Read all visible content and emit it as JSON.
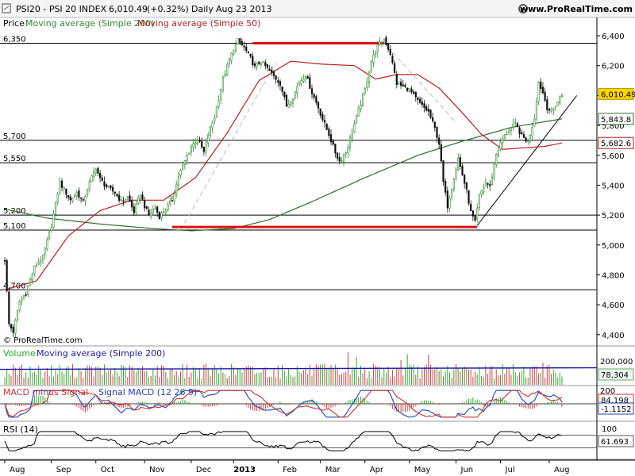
{
  "header": {
    "title": "PSI20 - PSI 20 INDEX",
    "price": "6,010.49",
    "change": "(+0.32%)",
    "period": "Daily",
    "date": "Aug 23 2013",
    "site": "www.ProRealTime.com"
  },
  "legend": {
    "price": "Price",
    "ma200": "Moving average (Simple 200)",
    "ma50": "Moving average (Simple 50)"
  },
  "copyright": "© ProRealTime.com",
  "colors": {
    "bull": "#2e8b2e",
    "bear": "#111111",
    "ma200": "#2e6b2e",
    "ma50": "#b22222",
    "support": "#dd1111",
    "volume_up": "#33aa33",
    "volume_down": "#cc4444",
    "volume_ma": "#1a1aaa",
    "macd_line": "#2244aa",
    "signal_line": "#cc3333",
    "rsi": "#000000",
    "price_badge": "#ffd400"
  },
  "chart_data": {
    "type": "candlestick",
    "price_range": [
      4330,
      6480
    ],
    "y_ticks": [
      4400,
      4600,
      4800,
      5000,
      5200,
      5400,
      5600,
      5800,
      6000,
      6200,
      6400
    ],
    "y_tick_labels": [
      "4,400",
      "4,600",
      "4,800",
      "5,000",
      "5,200",
      "5,400",
      "5,600",
      "5,800",
      "6,000",
      "6,200",
      "6,400"
    ],
    "x_labels": [
      "Aug",
      "Sep",
      "Oct",
      "Nov",
      "Dec",
      "2013",
      "Feb",
      "Mar",
      "Apr",
      "May",
      "Jun",
      "Jul",
      "Aug"
    ],
    "x_label_days": [
      0,
      22,
      43,
      66,
      88,
      108,
      129,
      149,
      170,
      191,
      213,
      234,
      257
    ],
    "total_days": 278,
    "horizontal_levels": [
      {
        "value": 6350,
        "label": "6,350"
      },
      {
        "value": 5700,
        "label": "5,700"
      },
      {
        "value": 5550,
        "label": "5,550"
      },
      {
        "value": 5200,
        "label": "5,200"
      },
      {
        "value": 5100,
        "label": "5,100"
      },
      {
        "value": 4700,
        "label": "4,700"
      }
    ],
    "price_path": [
      [
        0,
        4900
      ],
      [
        2,
        4470
      ],
      [
        4,
        4420
      ],
      [
        7,
        4620
      ],
      [
        10,
        4680
      ],
      [
        14,
        4850
      ],
      [
        18,
        4920
      ],
      [
        22,
        5130
      ],
      [
        26,
        5420
      ],
      [
        28,
        5370
      ],
      [
        31,
        5300
      ],
      [
        34,
        5350
      ],
      [
        37,
        5290
      ],
      [
        40,
        5420
      ],
      [
        43,
        5520
      ],
      [
        45,
        5440
      ],
      [
        48,
        5390
      ],
      [
        52,
        5350
      ],
      [
        55,
        5290
      ],
      [
        58,
        5320
      ],
      [
        61,
        5220
      ],
      [
        64,
        5340
      ],
      [
        66,
        5260
      ],
      [
        68,
        5200
      ],
      [
        71,
        5250
      ],
      [
        73,
        5190
      ],
      [
        76,
        5240
      ],
      [
        79,
        5300
      ],
      [
        82,
        5460
      ],
      [
        85,
        5560
      ],
      [
        88,
        5660
      ],
      [
        91,
        5710
      ],
      [
        94,
        5620
      ],
      [
        96,
        5740
      ],
      [
        99,
        5860
      ],
      [
        101,
        5980
      ],
      [
        103,
        6110
      ],
      [
        106,
        6240
      ],
      [
        108,
        6310
      ],
      [
        110,
        6370
      ],
      [
        113,
        6320
      ],
      [
        116,
        6250
      ],
      [
        118,
        6190
      ],
      [
        121,
        6230
      ],
      [
        124,
        6180
      ],
      [
        127,
        6130
      ],
      [
        130,
        6080
      ],
      [
        133,
        5930
      ],
      [
        136,
        5990
      ],
      [
        139,
        6090
      ],
      [
        142,
        6140
      ],
      [
        145,
        6020
      ],
      [
        148,
        5920
      ],
      [
        150,
        5840
      ],
      [
        153,
        5740
      ],
      [
        156,
        5620
      ],
      [
        158,
        5560
      ],
      [
        161,
        5620
      ],
      [
        164,
        5760
      ],
      [
        167,
        5900
      ],
      [
        170,
        6040
      ],
      [
        173,
        6230
      ],
      [
        176,
        6330
      ],
      [
        179,
        6380
      ],
      [
        182,
        6280
      ],
      [
        185,
        6080
      ],
      [
        188,
        6060
      ],
      [
        191,
        6040
      ],
      [
        194,
        5980
      ],
      [
        197,
        5930
      ],
      [
        200,
        5890
      ],
      [
        203,
        5780
      ],
      [
        205,
        5680
      ],
      [
        207,
        5420
      ],
      [
        209,
        5260
      ],
      [
        212,
        5450
      ],
      [
        214,
        5580
      ],
      [
        216,
        5470
      ],
      [
        218,
        5360
      ],
      [
        220,
        5220
      ],
      [
        222,
        5150
      ],
      [
        224,
        5330
      ],
      [
        227,
        5420
      ],
      [
        229,
        5390
      ],
      [
        232,
        5610
      ],
      [
        235,
        5710
      ],
      [
        238,
        5770
      ],
      [
        241,
        5810
      ],
      [
        244,
        5730
      ],
      [
        247,
        5690
      ],
      [
        250,
        5850
      ],
      [
        252,
        6090
      ],
      [
        254,
        6020
      ],
      [
        256,
        5920
      ],
      [
        258,
        5890
      ],
      [
        261,
        5960
      ],
      [
        263,
        6010
      ]
    ],
    "ma200_path": [
      [
        0,
        5240
      ],
      [
        20,
        5180
      ],
      [
        45,
        5140
      ],
      [
        70,
        5110
      ],
      [
        88,
        5095
      ],
      [
        108,
        5110
      ],
      [
        125,
        5170
      ],
      [
        145,
        5290
      ],
      [
        170,
        5450
      ],
      [
        195,
        5600
      ],
      [
        215,
        5690
      ],
      [
        240,
        5790
      ],
      [
        263,
        5843.8
      ]
    ],
    "ma50_path": [
      [
        0,
        4700
      ],
      [
        15,
        4760
      ],
      [
        30,
        5060
      ],
      [
        45,
        5230
      ],
      [
        60,
        5300
      ],
      [
        75,
        5300
      ],
      [
        90,
        5450
      ],
      [
        105,
        5750
      ],
      [
        120,
        6100
      ],
      [
        135,
        6230
      ],
      [
        150,
        6210
      ],
      [
        165,
        6200
      ],
      [
        175,
        6110
      ],
      [
        185,
        6140
      ],
      [
        195,
        6140
      ],
      [
        205,
        6050
      ],
      [
        215,
        5900
      ],
      [
        225,
        5740
      ],
      [
        235,
        5640
      ],
      [
        245,
        5650
      ],
      [
        255,
        5660
      ],
      [
        263,
        5682.6
      ]
    ],
    "red_lines": [
      {
        "x1": 117,
        "x2": 179,
        "y": 6350
      },
      {
        "x1": 79,
        "x2": 223,
        "y": 5120
      }
    ],
    "trendlines": [
      {
        "x1": 223,
        "y1": 5130,
        "x2": 270,
        "y2": 6000
      },
      {
        "x1": 83,
        "y1": 5100,
        "x2": 128,
        "y2": 6220
      },
      {
        "x1": 183,
        "y1": 6290,
        "x2": 213,
        "y2": 5820
      }
    ],
    "last_values": {
      "price": "6,010.49",
      "ma200": "5,843.8",
      "ma50": "5,682.6",
      "volume_ma": "200,000",
      "volume": "78,304",
      "macd_top": "200",
      "macd": "84.198",
      "signal": "-1.1152",
      "rsi_100": "100",
      "rsi": "61.693"
    },
    "volume": {
      "label": "Volume",
      "ma_label": "Moving average (Simple 200)",
      "range": [
        0,
        220000
      ]
    },
    "macd": {
      "label": "MACD minus Signal",
      "line_label": "Signal MACD (12 26 9)",
      "range": [
        -250,
        250
      ]
    },
    "rsi": {
      "label": "RSI (14)",
      "range": [
        0,
        100
      ]
    }
  }
}
